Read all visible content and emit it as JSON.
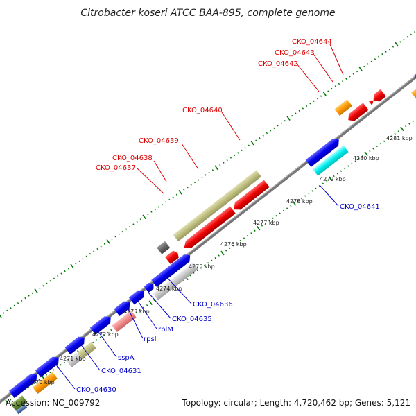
{
  "title": "Citrobacter koseri ATCC BAA-895, complete genome",
  "footer": {
    "accession": "Accession: NC_009792",
    "summary": "Topology: circular; Length: 4,720,462 bp; Genes: 5,121"
  },
  "ticks": [
    "4270 kbp",
    "4271 kbp",
    "4272 kbp",
    "4273 kbp",
    "4274 kbp",
    "4275 kbp",
    "4276 kbp",
    "4277 kbp",
    "4278 kbp",
    "4279 kbp",
    "4280 kbp",
    "4281 kbp"
  ],
  "labels_top": [
    "CKO_04637",
    "CKO_04638",
    "CKO_04639",
    "CKO_04640",
    "CKO_04642",
    "CKO_04643",
    "CKO_04644"
  ],
  "labels_bottom": [
    "CKO_04630",
    "CKO_04631",
    "sspA",
    "rpsI",
    "rplM",
    "CKO_04635",
    "CKO_04636",
    "CKO_04641"
  ],
  "colors": {
    "forward_cds": "#0000ee",
    "reverse_cds": "#ee0000",
    "orange_feature": "#ff9900",
    "olive_feature": "#bdbd80",
    "grey_feature": "#c8c8c8",
    "dark_feature": "#666666",
    "pink_feature": "#ee8888",
    "cyan_feature": "#00eeee",
    "backbone": "#777777",
    "tick": "#007700"
  }
}
